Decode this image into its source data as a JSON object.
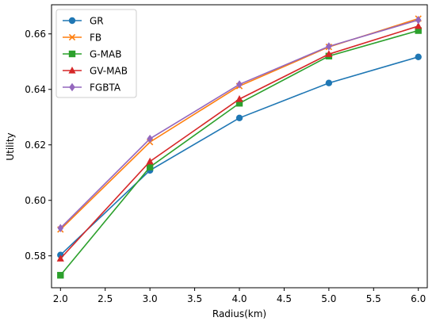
{
  "chart_data": {
    "type": "line",
    "title": "",
    "xlabel": "Radius(km)",
    "ylabel": "Utility",
    "x": [
      2.0,
      3.0,
      4.0,
      5.0,
      6.0
    ],
    "xlim": [
      1.9,
      6.1
    ],
    "ylim": [
      0.5685,
      0.6705
    ],
    "xticks": [
      2.0,
      2.5,
      3.0,
      3.5,
      4.0,
      4.5,
      5.0,
      5.5,
      6.0
    ],
    "xtick_labels": [
      "2.0",
      "2.5",
      "3.0",
      "3.5",
      "4.0",
      "4.5",
      "5.0",
      "5.5",
      "6.0"
    ],
    "yticks": [
      0.58,
      0.6,
      0.62,
      0.64,
      0.66
    ],
    "ytick_labels": [
      "0.58",
      "0.60",
      "0.62",
      "0.64",
      "0.66"
    ],
    "grid": false,
    "legend_position": "top-left",
    "series": [
      {
        "name": "GR",
        "color": "#1f77b4",
        "marker": "circle",
        "values": [
          0.5803,
          0.6108,
          0.6297,
          0.6423,
          0.6517
        ]
      },
      {
        "name": "FB",
        "color": "#ff7f0e",
        "marker": "x",
        "values": [
          0.5895,
          0.621,
          0.6412,
          0.6553,
          0.6655
        ]
      },
      {
        "name": "G-MAB",
        "color": "#2ca02c",
        "marker": "square",
        "values": [
          0.573,
          0.612,
          0.635,
          0.652,
          0.6612
        ]
      },
      {
        "name": "GV-MAB",
        "color": "#d62728",
        "marker": "triangle",
        "values": [
          0.579,
          0.614,
          0.6365,
          0.6527,
          0.6628
        ]
      },
      {
        "name": "FGBTA",
        "color": "#9467bd",
        "marker": "diamond",
        "values": [
          0.59,
          0.6222,
          0.6418,
          0.6555,
          0.665
        ]
      }
    ]
  }
}
